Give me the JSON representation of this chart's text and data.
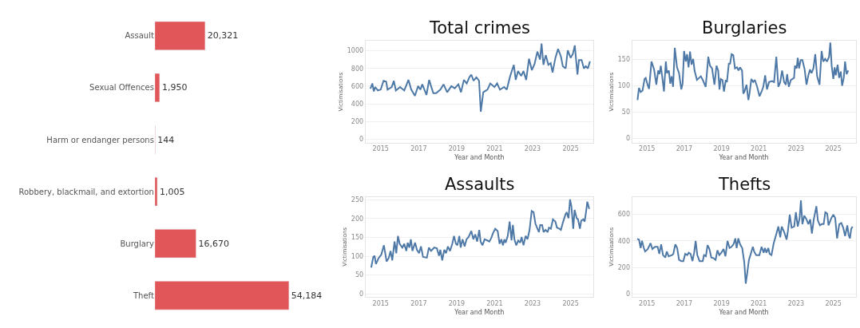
{
  "chart_data": [
    {
      "type": "bar",
      "orientation": "horizontal",
      "categories": [
        "Assault",
        "Sexual Offences",
        "Harm or endanger persons",
        "Robbery, blackmail, and extortion",
        "Burglary",
        "Theft"
      ],
      "values": [
        20321,
        1950,
        144,
        1005,
        16670,
        54184
      ],
      "color": "#e15759",
      "value_labels": [
        "20,321",
        "1,950",
        "144",
        "1,005",
        "16,670",
        "54,184"
      ]
    },
    {
      "type": "line",
      "title": "Total crimes",
      "xlabel": "Year and Month",
      "ylabel": "Victimisations",
      "xlim": [
        2014.2,
        2026.2
      ],
      "xticks": [
        2015,
        2017,
        2019,
        2021,
        2023,
        2025
      ],
      "ylim": [
        -40,
        1110
      ],
      "yticks": [
        0,
        200,
        400,
        600,
        800,
        1000
      ],
      "grid": "y",
      "x": [
        2014.46,
        2014.56,
        2014.64,
        2014.71,
        2014.85,
        2015.0,
        2015.15,
        2015.29,
        2015.36,
        2015.58,
        2015.69,
        2015.8,
        2016.02,
        2016.24,
        2016.46,
        2016.61,
        2016.8,
        2016.97,
        2017.09,
        2017.19,
        2017.41,
        2017.55,
        2017.77,
        2017.92,
        2018.14,
        2018.31,
        2018.5,
        2018.72,
        2018.9,
        2019.09,
        2019.23,
        2019.38,
        2019.53,
        2019.67,
        2019.77,
        2019.89,
        2020.04,
        2020.18,
        2020.27,
        2020.4,
        2020.62,
        2020.77,
        2020.99,
        2021.13,
        2021.28,
        2021.5,
        2021.64,
        2021.82,
        2022.01,
        2022.11,
        2022.23,
        2022.4,
        2022.52,
        2022.66,
        2022.81,
        2022.96,
        2023.1,
        2023.25,
        2023.39,
        2023.47,
        2023.57,
        2023.69,
        2023.83,
        2023.95,
        2024.05,
        2024.2,
        2024.34,
        2024.49,
        2024.59,
        2024.74,
        2024.85,
        2025.0,
        2025.12,
        2025.22,
        2025.36,
        2025.44,
        2025.58,
        2025.7,
        2025.8,
        2025.91,
        2026.02
      ],
      "series": [
        {
          "color": "#4e79a7",
          "values": [
            570,
            630,
            540,
            590,
            550,
            560,
            660,
            650,
            560,
            590,
            660,
            550,
            590,
            550,
            670,
            560,
            490,
            600,
            560,
            620,
            500,
            670,
            520,
            520,
            560,
            620,
            530,
            600,
            575,
            620,
            530,
            670,
            630,
            700,
            730,
            660,
            700,
            660,
            310,
            530,
            560,
            630,
            590,
            630,
            560,
            590,
            560,
            715,
            840,
            670,
            770,
            715,
            770,
            670,
            910,
            780,
            850,
            990,
            900,
            1080,
            840,
            950,
            840,
            860,
            755,
            920,
            1020,
            935,
            825,
            800,
            1005,
            920,
            965,
            1060,
            730,
            895,
            895,
            800,
            825,
            800,
            880
          ]
        }
      ]
    },
    {
      "type": "line",
      "title": "Burglaries",
      "xlabel": "Year and Month",
      "ylabel": "Victimisations",
      "xlim": [
        2014.2,
        2026.2
      ],
      "xticks": [
        2015,
        2017,
        2019,
        2021,
        2023,
        2025
      ],
      "ylim": [
        -8,
        185
      ],
      "yticks": [
        0,
        50,
        100,
        150
      ],
      "grid": "y",
      "x": [
        2014.49,
        2014.57,
        2014.66,
        2014.76,
        2014.87,
        2014.93,
        2015.03,
        2015.11,
        2015.24,
        2015.38,
        2015.5,
        2015.6,
        2015.67,
        2015.74,
        2015.83,
        2015.91,
        2016.01,
        2016.07,
        2016.17,
        2016.25,
        2016.32,
        2016.4,
        2016.49,
        2016.61,
        2016.72,
        2016.84,
        2016.91,
        2016.99,
        2017.08,
        2017.15,
        2017.23,
        2017.31,
        2017.39,
        2017.48,
        2017.55,
        2017.68,
        2017.89,
        2018.02,
        2018.15,
        2018.29,
        2018.38,
        2018.49,
        2018.62,
        2018.73,
        2018.82,
        2018.89,
        2018.96,
        2019.05,
        2019.13,
        2019.23,
        2019.29,
        2019.39,
        2019.46,
        2019.54,
        2019.63,
        2019.72,
        2019.83,
        2019.91,
        2019.99,
        2020.1,
        2020.17,
        2020.23,
        2020.34,
        2020.44,
        2020.5,
        2020.6,
        2020.7,
        2020.79,
        2020.91,
        2021.04,
        2021.15,
        2021.24,
        2021.34,
        2021.44,
        2021.55,
        2021.71,
        2021.82,
        2021.94,
        2022.05,
        2022.15,
        2022.25,
        2022.36,
        2022.45,
        2022.52,
        2022.61,
        2022.72,
        2022.81,
        2022.89,
        2022.94,
        2023.03,
        2023.09,
        2023.16,
        2023.25,
        2023.34,
        2023.46,
        2023.56,
        2023.66,
        2023.75,
        2023.83,
        2023.93,
        2024.03,
        2024.13,
        2024.26,
        2024.37,
        2024.46,
        2024.56,
        2024.66,
        2024.77,
        2024.84,
        2024.91,
        2025.0,
        2025.07,
        2025.13,
        2025.23,
        2025.31,
        2025.4,
        2025.47,
        2025.56,
        2025.63,
        2025.71,
        2025.8
      ],
      "series": [
        {
          "color": "#4e79a7",
          "values": [
            73,
            96,
            88,
            91,
            113,
            115,
            102,
            94,
            146,
            131,
            102,
            129,
            122,
            138,
            113,
            89,
            146,
            124,
            129,
            104,
            118,
            98,
            172,
            135,
            124,
            93,
            104,
            166,
            146,
            160,
            135,
            165,
            140,
            151,
            129,
            111,
            118,
            109,
            98,
            155,
            138,
            133,
            102,
            138,
            129,
            93,
            113,
            111,
            89,
            111,
            107,
            142,
            142,
            160,
            158,
            133,
            135,
            129,
            135,
            129,
            85,
            89,
            102,
            73,
            85,
            113,
            107,
            111,
            98,
            80,
            89,
            98,
            120,
            93,
            107,
            109,
            107,
            155,
            98,
            107,
            129,
            107,
            102,
            122,
            98,
            111,
            113,
            115,
            138,
            133,
            153,
            133,
            149,
            149,
            131,
            102,
            120,
            131,
            124,
            133,
            160,
            118,
            102,
            166,
            146,
            151,
            146,
            155,
            182,
            138,
            113,
            135,
            120,
            140,
            115,
            127,
            100,
            115,
            146,
            122,
            129
          ]
        }
      ]
    },
    {
      "type": "line",
      "title": "Assaults",
      "xlabel": "Year and Month",
      "ylabel": "Victimisations",
      "xlim": [
        2014.2,
        2026.2
      ],
      "xticks": [
        2015,
        2017,
        2019,
        2021,
        2023,
        2025
      ],
      "ylim": [
        -8,
        258
      ],
      "yticks": [
        0,
        50,
        100,
        150,
        200,
        250
      ],
      "grid": "y",
      "x": [
        2014.5,
        2014.61,
        2014.68,
        2014.75,
        2014.89,
        2015.03,
        2015.17,
        2015.31,
        2015.42,
        2015.52,
        2015.61,
        2015.73,
        2015.82,
        2015.91,
        2016.0,
        2016.14,
        2016.24,
        2016.35,
        2016.42,
        2016.51,
        2016.59,
        2016.67,
        2016.81,
        2016.91,
        2017.02,
        2017.12,
        2017.23,
        2017.43,
        2017.54,
        2017.65,
        2017.82,
        2017.96,
        2018.07,
        2018.14,
        2018.24,
        2018.35,
        2018.44,
        2018.54,
        2018.65,
        2018.77,
        2018.86,
        2018.96,
        2019.04,
        2019.14,
        2019.21,
        2019.31,
        2019.42,
        2019.52,
        2019.63,
        2019.77,
        2019.88,
        2019.98,
        2020.08,
        2020.19,
        2020.26,
        2020.36,
        2020.47,
        2020.61,
        2020.72,
        2020.82,
        2020.91,
        2021.03,
        2021.16,
        2021.26,
        2021.35,
        2021.44,
        2021.51,
        2021.58,
        2021.69,
        2021.79,
        2021.89,
        2021.96,
        2022.04,
        2022.14,
        2022.24,
        2022.35,
        2022.42,
        2022.52,
        2022.63,
        2022.73,
        2022.84,
        2022.95,
        2023.05,
        2023.15,
        2023.23,
        2023.33,
        2023.4,
        2023.5,
        2023.58,
        2023.68,
        2023.79,
        2023.86,
        2023.96,
        2024.07,
        2024.2,
        2024.28,
        2024.41,
        2024.49,
        2024.59,
        2024.73,
        2024.79,
        2024.89,
        2024.97,
        2025.04,
        2025.14,
        2025.21,
        2025.32,
        2025.39,
        2025.49,
        2025.56,
        2025.67,
        2025.74,
        2025.81,
        2025.88,
        2025.98
      ],
      "series": [
        {
          "color": "#4e79a7",
          "values": [
            70,
            98,
            101,
            79,
            95,
            104,
            129,
            86,
            95,
            114,
            89,
            139,
            108,
            154,
            133,
            123,
            133,
            114,
            136,
            123,
            145,
            114,
            136,
            117,
            108,
            126,
            98,
            96,
            123,
            114,
            123,
            121,
            101,
            117,
            89,
            117,
            108,
            126,
            114,
            133,
            154,
            133,
            129,
            154,
            123,
            145,
            126,
            145,
            151,
            167,
            145,
            158,
            139,
            170,
            139,
            129,
            145,
            142,
            139,
            148,
            161,
            173,
            167,
            133,
            145,
            129,
            145,
            136,
            154,
            192,
            142,
            183,
            145,
            129,
            142,
            136,
            151,
            129,
            154,
            145,
            170,
            220,
            217,
            186,
            176,
            164,
            183,
            183,
            164,
            170,
            164,
            176,
            173,
            198,
            192,
            176,
            173,
            170,
            189,
            211,
            217,
            201,
            251,
            233,
            173,
            223,
            201,
            198,
            173,
            195,
            198,
            192,
            217,
            245,
            226
          ]
        }
      ]
    },
    {
      "type": "line",
      "title": "Thefts",
      "xlabel": "Year and Month",
      "ylabel": "Victimisations",
      "xlim": [
        2014.2,
        2026.2
      ],
      "xticks": [
        2015,
        2017,
        2019,
        2021,
        2023,
        2025
      ],
      "ylim": [
        -20,
        730
      ],
      "yticks": [
        0,
        200,
        400,
        600
      ],
      "grid": "y",
      "x": [
        2014.47,
        2014.57,
        2014.66,
        2014.73,
        2014.83,
        2014.9,
        2015.04,
        2015.19,
        2015.29,
        2015.43,
        2015.57,
        2015.66,
        2015.76,
        2015.86,
        2015.98,
        2016.06,
        2016.16,
        2016.34,
        2016.41,
        2016.52,
        2016.62,
        2016.72,
        2016.84,
        2016.95,
        2017.05,
        2017.16,
        2017.24,
        2017.34,
        2017.44,
        2017.53,
        2017.61,
        2017.7,
        2017.82,
        2017.99,
        2018.06,
        2018.16,
        2018.25,
        2018.35,
        2018.45,
        2018.56,
        2018.68,
        2018.78,
        2018.88,
        2018.99,
        2019.11,
        2019.21,
        2019.32,
        2019.43,
        2019.53,
        2019.64,
        2019.74,
        2019.81,
        2019.9,
        2020.0,
        2020.11,
        2020.22,
        2020.3,
        2020.37,
        2020.47,
        2020.57,
        2020.68,
        2020.75,
        2020.86,
        2021.03,
        2021.15,
        2021.26,
        2021.33,
        2021.41,
        2021.51,
        2021.58,
        2021.68,
        2021.8,
        2021.91,
        2022.05,
        2022.15,
        2022.23,
        2022.37,
        2022.49,
        2022.56,
        2022.66,
        2022.76,
        2022.9,
        2022.99,
        2023.09,
        2023.19,
        2023.26,
        2023.34,
        2023.44,
        2023.56,
        2023.66,
        2023.76,
        2023.85,
        2023.95,
        2024.09,
        2024.17,
        2024.28,
        2024.38,
        2024.48,
        2024.57,
        2024.67,
        2024.74,
        2024.89,
        2025.0,
        2025.1,
        2025.2,
        2025.32,
        2025.43,
        2025.53,
        2025.63,
        2025.75,
        2025.82,
        2025.89,
        2025.96,
        2026.03
      ],
      "series": [
        {
          "color": "#4e79a7",
          "values": [
            414,
            409,
            346,
            400,
            346,
            320,
            338,
            382,
            338,
            355,
            355,
            302,
            373,
            293,
            275,
            320,
            284,
            293,
            302,
            373,
            346,
            257,
            248,
            248,
            302,
            293,
            311,
            302,
            248,
            311,
            400,
            293,
            248,
            248,
            293,
            284,
            368,
            338,
            275,
            271,
            257,
            329,
            293,
            311,
            338,
            284,
            400,
            346,
            355,
            373,
            418,
            346,
            418,
            373,
            346,
            239,
            79,
            150,
            257,
            302,
            355,
            320,
            293,
            293,
            355,
            311,
            346,
            311,
            346,
            302,
            293,
            382,
            436,
            507,
            427,
            507,
            462,
            409,
            471,
            596,
            498,
            507,
            614,
            507,
            570,
            704,
            525,
            588,
            561,
            525,
            561,
            454,
            561,
            659,
            552,
            516,
            525,
            525,
            614,
            605,
            516,
            570,
            596,
            570,
            418,
            525,
            534,
            498,
            436,
            516,
            445,
            418,
            489,
            507
          ]
        }
      ]
    }
  ]
}
